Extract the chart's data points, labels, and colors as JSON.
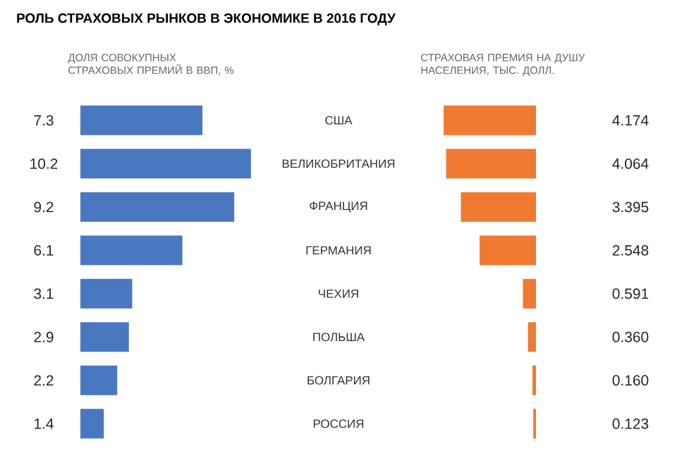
{
  "chart_data": [
    {
      "type": "bar",
      "orientation": "horizontal",
      "title": "РОЛЬ СТРАХОВЫХ РЫНКОВ В ЭКОНОМИКЕ В 2016 ГОДУ",
      "subtitle": "ДОЛЯ СОВОКУПНЫХ СТРАХОВЫХ ПРЕМИЙ В ВВП, %",
      "categories": [
        "США",
        "ВЕЛИКОБРИТАНИЯ",
        "ФРАНЦИЯ",
        "ГЕРМАНИЯ",
        "ЧЕХИЯ",
        "ПОЛЬША",
        "БОЛГАРИЯ",
        "РОССИЯ"
      ],
      "values": [
        7.3,
        10.2,
        9.2,
        6.1,
        3.1,
        2.9,
        2.2,
        1.4
      ],
      "color": "#4a78c0",
      "data_labels": true
    },
    {
      "type": "bar",
      "orientation": "horizontal",
      "subtitle": "СТРАХОВАЯ ПРЕМИЯ НА ДУШУ НАСЕЛЕНИЯ, ТЫС. ДОЛЛ.",
      "categories": [
        null,
        null,
        null,
        null,
        null,
        null,
        null,
        null
      ],
      "values": [
        4.174,
        4.064,
        3.395,
        2.548,
        0.591,
        0.36,
        0.16,
        0.123
      ],
      "value_labels": [
        "4.174",
        "4.064",
        "3.395",
        "2.548",
        "0.591",
        "0.360",
        "0.160",
        "0.123"
      ],
      "color": "#f07a32"
    }
  ]
}
